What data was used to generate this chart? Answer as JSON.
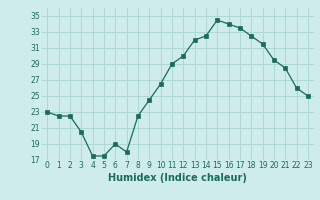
{
  "x": [
    0,
    1,
    2,
    3,
    4,
    5,
    6,
    7,
    8,
    9,
    10,
    11,
    12,
    13,
    14,
    15,
    16,
    17,
    18,
    19,
    20,
    21,
    22,
    23
  ],
  "y": [
    23,
    22.5,
    22.5,
    20.5,
    17.5,
    17.5,
    19,
    18,
    22.5,
    24.5,
    26.5,
    29,
    30,
    32,
    32.5,
    34.5,
    34,
    33.5,
    32.5,
    31.5,
    29.5,
    28.5,
    26,
    25
  ],
  "xlim": [
    -0.5,
    23.5
  ],
  "ylim": [
    17,
    36
  ],
  "yticks": [
    17,
    19,
    21,
    23,
    25,
    27,
    29,
    31,
    33,
    35
  ],
  "xticks": [
    0,
    1,
    2,
    3,
    4,
    5,
    6,
    7,
    8,
    9,
    10,
    11,
    12,
    13,
    14,
    15,
    16,
    17,
    18,
    19,
    20,
    21,
    22,
    23
  ],
  "xlabel": "Humidex (Indice chaleur)",
  "line_color": "#1a6b5a",
  "marker": "s",
  "marker_size": 2.2,
  "bg_color": "#ceecea",
  "grid_color": "#aed8d4",
  "tick_fontsize": 5.5,
  "xlabel_fontsize": 7.0
}
